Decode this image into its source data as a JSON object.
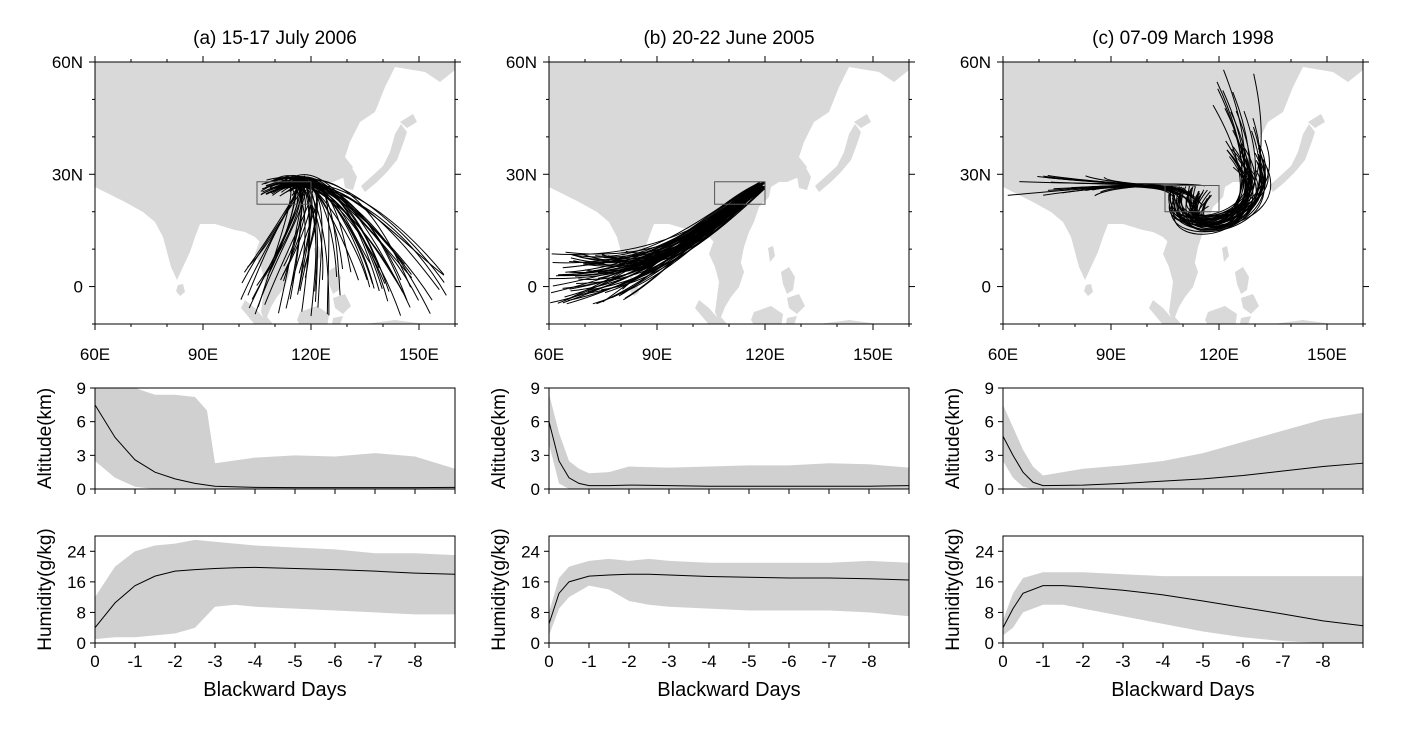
{
  "colors": {
    "land": "#d9d9d9",
    "envelope": "#d0d0d0",
    "line": "#000000",
    "box": "#555555"
  },
  "map_ticks": {
    "lon_labels": [
      "60E",
      "90E",
      "120E",
      "150E"
    ],
    "lat_labels": [
      "60N",
      "30N",
      "0"
    ]
  },
  "x_ticks": [
    "0",
    "-1",
    "-2",
    "-3",
    "-4",
    "-5",
    "-6",
    "-7",
    "-8"
  ],
  "altitude_ticks": [
    "0",
    "3",
    "6",
    "9"
  ],
  "humidity_ticks": [
    "0",
    "8",
    "16",
    "24"
  ],
  "altitude_label": "Altitude(km)",
  "humidity_label": "Humidity(g/kg)",
  "x_label": "Blackward Days",
  "chart_data": [
    {
      "type": "line",
      "panel": "a",
      "title": "(a) 15-17 July 2006",
      "map": {
        "lon_range": [
          60,
          160
        ],
        "lat_range": [
          -10,
          60
        ],
        "source_box": {
          "lon": [
            105,
            120
          ],
          "lat": [
            22,
            28
          ]
        }
      },
      "altitude": {
        "ylabel": "Altitude(km)",
        "ylim": [
          0,
          9
        ],
        "xlim": [
          0,
          -9
        ],
        "x": [
          0,
          -0.5,
          -1,
          -1.5,
          -2,
          -2.5,
          -2.8,
          -3,
          -4,
          -5,
          -6,
          -7,
          -8,
          -9
        ],
        "mean": [
          7.5,
          4.6,
          2.6,
          1.5,
          0.9,
          0.5,
          0.35,
          0.25,
          0.15,
          0.12,
          0.12,
          0.12,
          0.12,
          0.15
        ],
        "upper": [
          9,
          9,
          9,
          8.4,
          8.4,
          8.2,
          7.0,
          2.3,
          2.8,
          3.0,
          2.9,
          3.2,
          2.9,
          1.8
        ],
        "lower": [
          2.5,
          1.0,
          0.2,
          0,
          0,
          0,
          0,
          0,
          0,
          0,
          0,
          0,
          0,
          0
        ]
      },
      "humidity": {
        "ylabel": "Humidity(g/kg)",
        "ylim": [
          0,
          28
        ],
        "xlim": [
          0,
          -9
        ],
        "x": [
          0,
          -0.5,
          -1,
          -1.5,
          -2,
          -2.5,
          -3,
          -3.5,
          -4,
          -5,
          -6,
          -7,
          -8,
          -9
        ],
        "mean": [
          4,
          10.5,
          15,
          17.5,
          18.8,
          19.2,
          19.5,
          19.7,
          19.8,
          19.5,
          19.2,
          18.8,
          18.3,
          18
        ],
        "upper": [
          12,
          20,
          24,
          25.5,
          26,
          27,
          26.5,
          26,
          25.5,
          25,
          24.5,
          23.5,
          23.5,
          23
        ],
        "lower": [
          1,
          1.5,
          1.5,
          2,
          2.5,
          4,
          9.5,
          10,
          9.5,
          9,
          8.5,
          8,
          7.5,
          7.5
        ]
      }
    },
    {
      "type": "line",
      "panel": "b",
      "title": "(b) 20-22 June 2005",
      "map": {
        "lon_range": [
          60,
          160
        ],
        "lat_range": [
          -10,
          60
        ],
        "source_box": {
          "lon": [
            106,
            120
          ],
          "lat": [
            22,
            28
          ]
        }
      },
      "altitude": {
        "ylabel": "Altitude(km)",
        "ylim": [
          0,
          9
        ],
        "xlim": [
          0,
          -9
        ],
        "x": [
          0,
          -0.25,
          -0.5,
          -0.75,
          -1,
          -1.5,
          -2,
          -3,
          -4,
          -5,
          -6,
          -7,
          -8,
          -9
        ],
        "mean": [
          6.0,
          2.5,
          1.0,
          0.5,
          0.3,
          0.3,
          0.35,
          0.3,
          0.25,
          0.25,
          0.25,
          0.25,
          0.25,
          0.3
        ],
        "upper": [
          8.5,
          5.0,
          2.5,
          1.8,
          1.4,
          1.5,
          2.0,
          1.9,
          2.0,
          2.1,
          2.1,
          2.3,
          2.2,
          1.9
        ],
        "lower": [
          4.0,
          0.5,
          0,
          0,
          0,
          0,
          0,
          0,
          0,
          0,
          0,
          0,
          0,
          0
        ]
      },
      "humidity": {
        "ylabel": "Humidity(g/kg)",
        "ylim": [
          0,
          28
        ],
        "xlim": [
          0,
          -9
        ],
        "x": [
          0,
          -0.25,
          -0.5,
          -1,
          -1.5,
          -2,
          -2.5,
          -3,
          -4,
          -5,
          -6,
          -7,
          -8,
          -9
        ],
        "mean": [
          5,
          13,
          16,
          17.5,
          17.8,
          18,
          18,
          17.8,
          17.4,
          17.2,
          17,
          17,
          16.8,
          16.5
        ],
        "upper": [
          8,
          17,
          20,
          21.5,
          22,
          21.5,
          22,
          21.5,
          21,
          21,
          21,
          21,
          21.5,
          21
        ],
        "lower": [
          2,
          9,
          12,
          15,
          14,
          11,
          10,
          9.5,
          9,
          8.5,
          8.5,
          8.5,
          8,
          7
        ]
      }
    },
    {
      "type": "line",
      "panel": "c",
      "title": "(c) 07-09 March 1998",
      "map": {
        "lon_range": [
          60,
          160
        ],
        "lat_range": [
          -10,
          60
        ],
        "source_box": {
          "lon": [
            105,
            120
          ],
          "lat": [
            20,
            27
          ]
        }
      },
      "altitude": {
        "ylabel": "Altitude(km)",
        "ylim": [
          0,
          9
        ],
        "xlim": [
          0,
          -9
        ],
        "x": [
          0,
          -0.25,
          -0.5,
          -0.75,
          -1,
          -2,
          -3,
          -4,
          -5,
          -6,
          -7,
          -8,
          -9
        ],
        "mean": [
          4.7,
          3.0,
          1.5,
          0.6,
          0.3,
          0.35,
          0.5,
          0.7,
          0.9,
          1.2,
          1.6,
          2.0,
          2.3
        ],
        "upper": [
          7.5,
          5.5,
          3.5,
          2.0,
          1.2,
          1.8,
          2.1,
          2.5,
          3.2,
          4.2,
          5.2,
          6.2,
          6.8
        ],
        "lower": [
          2.5,
          1.0,
          0.2,
          0,
          0,
          0,
          0,
          0,
          0,
          0,
          0,
          0,
          0
        ]
      },
      "humidity": {
        "ylabel": "Humidity(g/kg)",
        "ylim": [
          0,
          28
        ],
        "xlim": [
          0,
          -9
        ],
        "x": [
          0,
          -0.25,
          -0.5,
          -1,
          -1.5,
          -2,
          -3,
          -4,
          -5,
          -6,
          -7,
          -8,
          -9
        ],
        "mean": [
          4,
          9,
          13,
          15,
          15,
          14.7,
          13.8,
          12.6,
          11,
          9.3,
          7.6,
          5.8,
          4.5
        ],
        "upper": [
          6,
          13,
          17,
          18.5,
          18.5,
          18.5,
          18,
          17.5,
          17.5,
          17.5,
          17.5,
          17.5,
          17.5
        ],
        "lower": [
          2,
          4,
          8,
          10,
          10,
          9,
          7,
          5,
          3,
          1.5,
          0.5,
          0,
          0
        ]
      }
    }
  ]
}
